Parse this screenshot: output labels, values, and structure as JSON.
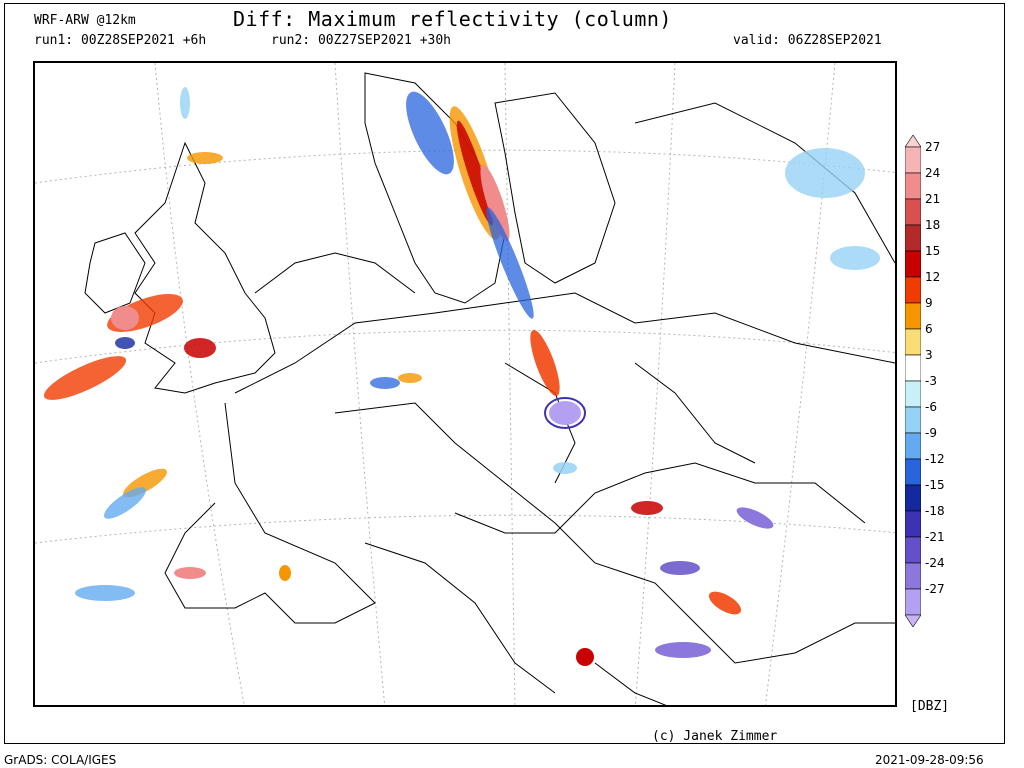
{
  "header": {
    "model": "WRF-ARW @12km",
    "title": "Diff: Maximum reflectivity (column)",
    "run1": "run1: 00Z28SEP2021 +6h",
    "run2": "run2: 00Z27SEP2021 +30h",
    "valid": "valid: 06Z28SEP2021"
  },
  "legend": {
    "units": "[DBZ]",
    "bands": [
      {
        "label": "27",
        "color": "#f6b4b4"
      },
      {
        "label": "24",
        "color": "#f08c8c"
      },
      {
        "label": "21",
        "color": "#d85050"
      },
      {
        "label": "18",
        "color": "#b42a2a"
      },
      {
        "label": "15",
        "color": "#c80000"
      },
      {
        "label": "12",
        "color": "#f03c00"
      },
      {
        "label": "9",
        "color": "#f59600"
      },
      {
        "label": "6",
        "color": "#fadc78"
      },
      {
        "label": "3",
        "color": "#ffffff"
      },
      {
        "label": "-3",
        "color": "#c8f0f8"
      },
      {
        "label": "-6",
        "color": "#96d2f5"
      },
      {
        "label": "-9",
        "color": "#64aaf0"
      },
      {
        "label": "-12",
        "color": "#2864dc"
      },
      {
        "label": "-15",
        "color": "#1428a0"
      },
      {
        "label": "-18",
        "color": "#3c32b4"
      },
      {
        "label": "-21",
        "color": "#6450c8"
      },
      {
        "label": "-24",
        "color": "#8c78dc"
      },
      {
        "label": "-27",
        "color": "#b4a0f0"
      }
    ],
    "top_arrow_color": "#fad2d2",
    "bottom_arrow_color": "#c8b4f5"
  },
  "footer": {
    "credit": "(c) Janek Zimmer",
    "software": "GrADS: COLA/IGES",
    "timestamp": "2021-09-28-09:56"
  }
}
